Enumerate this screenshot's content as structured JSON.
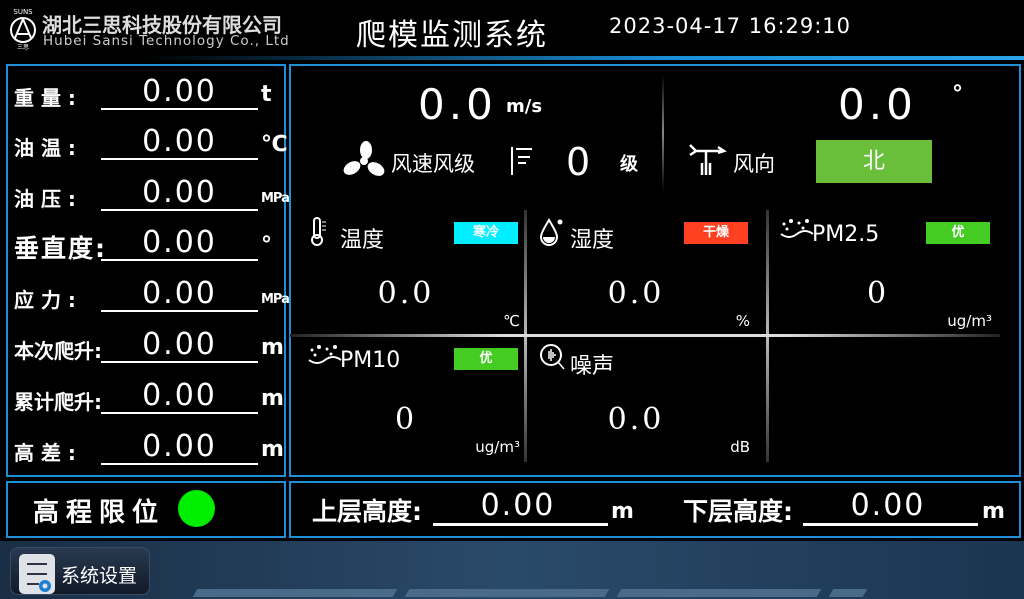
{
  "header": {
    "logo_mark": "SUNS",
    "logo_sub": "三思",
    "company_cn": "湖北三思科技股份有限公司",
    "company_en": "Hubei Sansi Technology Co., Ltd",
    "title": "爬模监测系统",
    "datetime": "2023-04-17 16:29:10"
  },
  "left_panel": {
    "rows": [
      {
        "label": "重 量 :",
        "value": "0.00",
        "unit": "t"
      },
      {
        "label": "油 温 :",
        "value": "0.00",
        "unit": "℃"
      },
      {
        "label": "油 压 :",
        "value": "0.00",
        "unit": "MPa"
      },
      {
        "label": "垂直度:",
        "value": "0.00",
        "unit": "°"
      },
      {
        "label": "应 力 :",
        "value": "0.00",
        "unit": "MPa"
      },
      {
        "label": "本次爬升:",
        "value": "0.00",
        "unit": "m"
      },
      {
        "label": "累计爬升:",
        "value": "0.00",
        "unit": "m"
      },
      {
        "label": "高 差 :",
        "value": "0.00",
        "unit": "m"
      }
    ]
  },
  "wind": {
    "speed_value": "0.0",
    "speed_unit": "m/s",
    "speed_label": "风速风级",
    "level_value": "0",
    "level_unit": "级",
    "direction_value": "0.0",
    "direction_unit": "°",
    "direction_label": "风向",
    "direction_text": "北",
    "direction_color": "#6abf3a"
  },
  "env": [
    {
      "title": "温度",
      "badge": "寒冷",
      "badge_color": "#00eeff",
      "value": "0.0",
      "unit": "℃",
      "icon": "thermometer-icon"
    },
    {
      "title": "湿度",
      "badge": "干燥",
      "badge_color": "#ff4020",
      "value": "0.0",
      "unit": "%",
      "icon": "water-drop-icon"
    },
    {
      "title": "PM2.5",
      "badge": "优",
      "badge_color": "#44cc22",
      "value": "0",
      "unit": "ug/m³",
      "icon": "dust-icon"
    },
    {
      "title": "PM10",
      "badge": "优",
      "badge_color": "#44cc22",
      "value": "0",
      "unit": "ug/m³",
      "icon": "dust-icon"
    },
    {
      "title": "噪声",
      "value": "0.0",
      "unit": "dB",
      "icon": "noise-icon"
    }
  ],
  "limit": {
    "label": "高程限位",
    "status_color": "#00ee00"
  },
  "heights": {
    "upper_label": "上层高度:",
    "upper_value": "0.00",
    "upper_unit": "m",
    "lower_label": "下层高度:",
    "lower_value": "0.00",
    "lower_unit": "m"
  },
  "footer": {
    "settings_label": "系统设置"
  }
}
